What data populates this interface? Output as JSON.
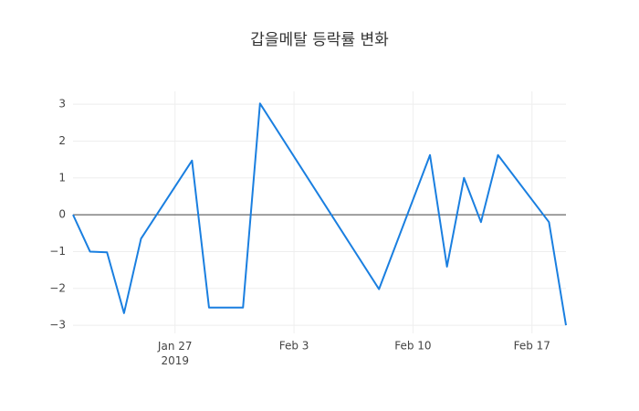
{
  "chart_data": {
    "type": "line",
    "title": "갑을메탈 등락률 변화",
    "x": [
      "2019-01-21",
      "2019-01-22",
      "2019-01-23",
      "2019-01-24",
      "2019-01-25",
      "2019-01-28",
      "2019-01-29",
      "2019-01-31",
      "2019-02-01",
      "2019-02-08",
      "2019-02-11",
      "2019-02-12",
      "2019-02-13",
      "2019-02-14",
      "2019-02-15",
      "2019-02-18",
      "2019-02-19"
    ],
    "series": [
      {
        "color": "#1a7fe0",
        "values": [
          0,
          -1.0,
          -1.02,
          -2.67,
          -0.65,
          1.47,
          -2.52,
          -2.52,
          3.02,
          -2.02,
          1.62,
          -1.41,
          1.0,
          -0.2,
          1.62,
          -0.2,
          -3.0
        ]
      }
    ],
    "xlim": [
      "2019-01-21",
      "2019-02-19"
    ],
    "xticks": [
      {
        "value": "2019-01-27",
        "label": "Jan 27\n2019"
      },
      {
        "value": "2019-02-03",
        "label": "Feb 3"
      },
      {
        "value": "2019-02-10",
        "label": "Feb 10"
      },
      {
        "value": "2019-02-17",
        "label": "Feb 17"
      }
    ],
    "ylim": [
      -3.22,
      3.35
    ],
    "yticks": [
      {
        "value": -3,
        "label": "−3"
      },
      {
        "value": -2,
        "label": "−2"
      },
      {
        "value": -1,
        "label": "−1"
      },
      0,
      1,
      2,
      3
    ],
    "grid": true,
    "zeroline": true
  }
}
